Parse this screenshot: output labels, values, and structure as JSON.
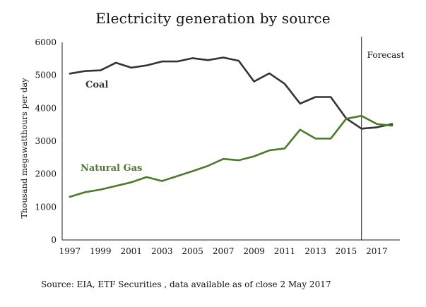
{
  "chart_data": {
    "type": "line",
    "title": "Electricity generation by source",
    "xlabel": "",
    "ylabel": "Thousand megawatthours per day",
    "ylim": [
      0,
      6000
    ],
    "xlim": [
      1996.5,
      2018.5
    ],
    "yticks": [
      "0",
      "1000",
      "2000",
      "3000",
      "4000",
      "5000",
      "6000"
    ],
    "xticks": [
      "1997",
      "1999",
      "2001",
      "2003",
      "2005",
      "2007",
      "2009",
      "2011",
      "2013",
      "2015",
      "2017"
    ],
    "x": [
      1997,
      1998,
      1999,
      2000,
      2001,
      2002,
      2003,
      2004,
      2005,
      2006,
      2007,
      2008,
      2009,
      2010,
      2011,
      2012,
      2013,
      2014,
      2015,
      2016,
      2017,
      2018
    ],
    "series": [
      {
        "name": "Coal",
        "color": "#333333",
        "values": [
          5050,
          5130,
          5150,
          5380,
          5230,
          5300,
          5420,
          5420,
          5520,
          5460,
          5540,
          5440,
          4810,
          5060,
          4740,
          4140,
          4340,
          4340,
          3690,
          3380,
          3420,
          3520
        ]
      },
      {
        "name": "Natural Gas",
        "color": "#4a7a2c",
        "values": [
          1310,
          1450,
          1530,
          1640,
          1750,
          1910,
          1790,
          1940,
          2090,
          2250,
          2460,
          2420,
          2540,
          2720,
          2780,
          3350,
          3080,
          3080,
          3680,
          3770,
          3520,
          3470
        ]
      }
    ],
    "forecast_line_x": 2016,
    "annotations": {
      "forecast": "Forecast"
    },
    "source": "Source: EIA, ETF Securities , data available as of close 2 May 2017"
  }
}
